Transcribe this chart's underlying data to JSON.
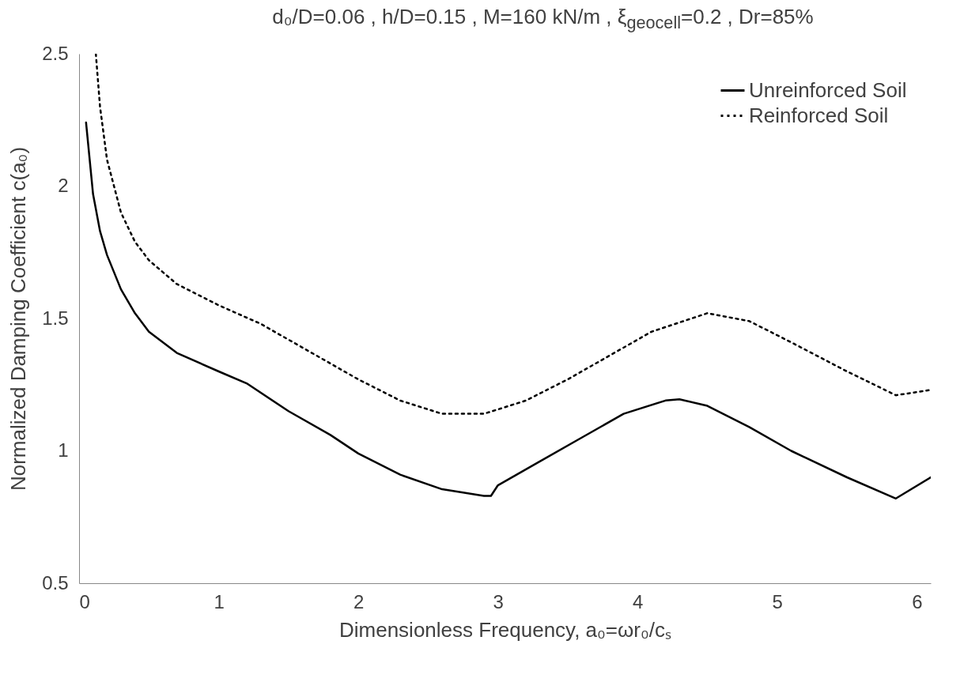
{
  "chart_data": {
    "type": "line",
    "title": "d₀/D=0.06 , h/D=0.15 , M=160 kN/m , ξ$_{geocell}$=0.2 , Dr=85%",
    "xlabel": "Dimensionless Frequency, a₀=ωr₀/cₛ",
    "ylabel": "Normalized Damping Coefficient c(a₀)",
    "xlim": [
      0,
      6.1
    ],
    "xticks": [
      0,
      1,
      2,
      3,
      4,
      5,
      6
    ],
    "ylim": [
      0.5,
      2.5
    ],
    "yticks": [
      0.5,
      1,
      1.5,
      2,
      2.5
    ],
    "grid": false,
    "legend": "top right",
    "series": [
      {
        "name": "Unreinforced Soil",
        "color": "#000000",
        "line_style": "solid",
        "x": [
          0.05,
          0.1,
          0.15,
          0.2,
          0.3,
          0.4,
          0.5,
          0.7,
          1.0,
          1.2,
          1.5,
          1.8,
          2.0,
          2.3,
          2.6,
          2.9,
          2.95,
          3.0,
          3.3,
          3.6,
          3.9,
          4.2,
          4.3,
          4.5,
          4.8,
          5.1,
          5.5,
          5.85,
          6.1
        ],
        "values": [
          2.24,
          1.97,
          1.83,
          1.74,
          1.61,
          1.52,
          1.45,
          1.37,
          1.3,
          1.255,
          1.15,
          1.06,
          0.99,
          0.91,
          0.855,
          0.83,
          0.83,
          0.87,
          0.96,
          1.05,
          1.14,
          1.19,
          1.195,
          1.17,
          1.09,
          1.0,
          0.9,
          0.82,
          0.9
        ]
      },
      {
        "name": "Reinforced Soil",
        "color": "#000000",
        "line_style": "dotted",
        "x": [
          0.12,
          0.15,
          0.2,
          0.3,
          0.4,
          0.5,
          0.7,
          1.0,
          1.3,
          1.6,
          2.0,
          2.3,
          2.6,
          2.9,
          3.2,
          3.5,
          3.8,
          4.1,
          4.5,
          4.8,
          5.1,
          5.5,
          5.85,
          6.1
        ],
        "values": [
          2.5,
          2.3,
          2.1,
          1.9,
          1.79,
          1.72,
          1.63,
          1.55,
          1.48,
          1.39,
          1.27,
          1.19,
          1.14,
          1.14,
          1.19,
          1.27,
          1.36,
          1.45,
          1.52,
          1.49,
          1.41,
          1.3,
          1.21,
          1.23
        ]
      }
    ]
  }
}
